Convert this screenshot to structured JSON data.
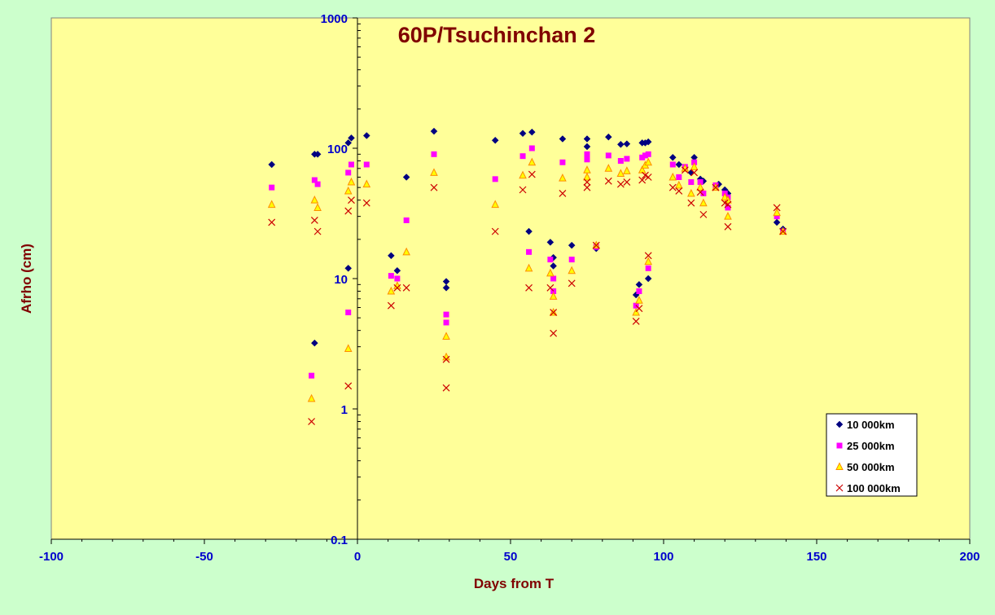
{
  "chart_data": {
    "type": "scatter",
    "title": "60P/Tsuchinchan 2",
    "xlabel": "Days from T",
    "ylabel": "Afrho (cm)",
    "xlim": [
      -100,
      200
    ],
    "ylim": [
      0.1,
      1000
    ],
    "yscale": "log",
    "x_ticks": [
      "-100",
      "-50",
      "0",
      "50",
      "100",
      "150",
      "200"
    ],
    "y_ticks": [
      "0.1",
      "1",
      "10",
      "100",
      "1000"
    ],
    "grid": false,
    "legend_position": "bottom-right",
    "colors": {
      "background": "#ccffcc",
      "plot_area": "#ffff99",
      "title": "#800000",
      "axis_title": "#800000",
      "tick_labels": "#0000cc"
    },
    "series": [
      {
        "name": "10 000km",
        "marker": "diamond",
        "color": "#000080",
        "points": [
          [
            -28,
            75
          ],
          [
            -14,
            3.2
          ],
          [
            -14,
            90
          ],
          [
            -13,
            90
          ],
          [
            -3,
            12
          ],
          [
            -3,
            110
          ],
          [
            -2,
            120
          ],
          [
            3,
            125
          ],
          [
            11,
            15
          ],
          [
            13,
            11.5
          ],
          [
            16,
            60
          ],
          [
            25,
            135
          ],
          [
            29,
            9.5
          ],
          [
            29,
            8.5
          ],
          [
            45,
            115
          ],
          [
            54,
            130
          ],
          [
            56,
            23
          ],
          [
            57,
            133
          ],
          [
            63,
            19
          ],
          [
            64,
            14.5
          ],
          [
            64,
            12.5
          ],
          [
            67,
            118
          ],
          [
            70,
            18
          ],
          [
            75,
            118
          ],
          [
            75,
            103
          ],
          [
            78,
            17
          ],
          [
            82,
            122
          ],
          [
            86,
            107
          ],
          [
            88,
            108
          ],
          [
            91,
            7.5
          ],
          [
            92,
            9
          ],
          [
            93,
            110
          ],
          [
            94,
            110
          ],
          [
            95,
            112
          ],
          [
            95,
            10
          ],
          [
            103,
            85
          ],
          [
            105,
            75
          ],
          [
            109,
            65
          ],
          [
            110,
            85
          ],
          [
            112,
            58
          ],
          [
            113,
            56
          ],
          [
            118,
            53
          ],
          [
            120,
            48
          ],
          [
            121,
            45
          ],
          [
            137,
            27
          ],
          [
            139,
            24
          ]
        ]
      },
      {
        "name": "25 000km",
        "marker": "square",
        "color": "#ff00ff",
        "points": [
          [
            -28,
            50
          ],
          [
            -15,
            1.8
          ],
          [
            -14,
            57
          ],
          [
            -13,
            53
          ],
          [
            -3,
            5.5
          ],
          [
            -3,
            65
          ],
          [
            -2,
            75
          ],
          [
            3,
            75
          ],
          [
            11,
            10.5
          ],
          [
            13,
            10
          ],
          [
            16,
            28
          ],
          [
            25,
            90
          ],
          [
            29,
            5.3
          ],
          [
            29,
            4.6
          ],
          [
            45,
            58
          ],
          [
            54,
            87
          ],
          [
            56,
            16
          ],
          [
            57,
            100
          ],
          [
            63,
            14
          ],
          [
            64,
            10
          ],
          [
            64,
            8
          ],
          [
            67,
            78
          ],
          [
            70,
            14
          ],
          [
            75,
            90
          ],
          [
            75,
            82
          ],
          [
            78,
            17.5
          ],
          [
            82,
            88
          ],
          [
            86,
            80
          ],
          [
            88,
            83
          ],
          [
            91,
            6.2
          ],
          [
            92,
            8
          ],
          [
            93,
            85
          ],
          [
            94,
            88
          ],
          [
            95,
            90
          ],
          [
            95,
            12
          ],
          [
            103,
            75
          ],
          [
            105,
            60
          ],
          [
            107,
            72
          ],
          [
            109,
            55
          ],
          [
            110,
            78
          ],
          [
            112,
            55
          ],
          [
            113,
            45
          ],
          [
            117,
            52
          ],
          [
            120,
            45
          ],
          [
            121,
            42
          ],
          [
            121,
            35
          ],
          [
            137,
            30
          ],
          [
            139,
            23
          ]
        ]
      },
      {
        "name": "50 000km",
        "marker": "triangle",
        "color": "#ff8c00",
        "points": [
          [
            -28,
            37
          ],
          [
            -15,
            1.2
          ],
          [
            -14,
            40
          ],
          [
            -13,
            35
          ],
          [
            -3,
            2.9
          ],
          [
            -3,
            47
          ],
          [
            -2,
            55
          ],
          [
            3,
            53
          ],
          [
            11,
            8
          ],
          [
            13,
            8.8
          ],
          [
            16,
            16
          ],
          [
            25,
            65
          ],
          [
            29,
            3.6
          ],
          [
            29,
            2.5
          ],
          [
            45,
            37
          ],
          [
            54,
            62
          ],
          [
            56,
            12
          ],
          [
            57,
            78
          ],
          [
            63,
            11
          ],
          [
            64,
            7.3
          ],
          [
            64,
            5.5
          ],
          [
            67,
            59
          ],
          [
            70,
            11.5
          ],
          [
            75,
            68
          ],
          [
            75,
            60
          ],
          [
            78,
            18
          ],
          [
            82,
            70
          ],
          [
            86,
            64
          ],
          [
            88,
            67
          ],
          [
            91,
            5.5
          ],
          [
            92,
            6.8
          ],
          [
            93,
            68
          ],
          [
            94,
            74
          ],
          [
            95,
            78
          ],
          [
            95,
            13.5
          ],
          [
            103,
            60
          ],
          [
            105,
            52
          ],
          [
            107,
            70
          ],
          [
            109,
            45
          ],
          [
            110,
            72
          ],
          [
            112,
            50
          ],
          [
            113,
            38
          ],
          [
            117,
            50
          ],
          [
            120,
            42
          ],
          [
            121,
            40
          ],
          [
            121,
            30
          ],
          [
            137,
            32
          ],
          [
            139,
            23
          ]
        ]
      },
      {
        "name": "100 000km",
        "marker": "x",
        "color": "#cc0000",
        "points": [
          [
            -28,
            27
          ],
          [
            -15,
            0.8
          ],
          [
            -14,
            28
          ],
          [
            -13,
            23
          ],
          [
            -3,
            1.5
          ],
          [
            -3,
            33
          ],
          [
            -2,
            40
          ],
          [
            3,
            38
          ],
          [
            11,
            6.2
          ],
          [
            13,
            8.5
          ],
          [
            16,
            8.5
          ],
          [
            25,
            50
          ],
          [
            29,
            2.4
          ],
          [
            29,
            1.45
          ],
          [
            45,
            23
          ],
          [
            54,
            48
          ],
          [
            56,
            8.5
          ],
          [
            57,
            63
          ],
          [
            63,
            8.5
          ],
          [
            64,
            5.5
          ],
          [
            64,
            3.8
          ],
          [
            67,
            45
          ],
          [
            70,
            9.2
          ],
          [
            75,
            50
          ],
          [
            75,
            55
          ],
          [
            78,
            18
          ],
          [
            82,
            56
          ],
          [
            86,
            53
          ],
          [
            88,
            55
          ],
          [
            91,
            4.7
          ],
          [
            92,
            5.9
          ],
          [
            93,
            57
          ],
          [
            94,
            62
          ],
          [
            95,
            60
          ],
          [
            95,
            15
          ],
          [
            103,
            50
          ],
          [
            105,
            47
          ],
          [
            107,
            68
          ],
          [
            109,
            38
          ],
          [
            110,
            65
          ],
          [
            112,
            46
          ],
          [
            113,
            31
          ],
          [
            117,
            50
          ],
          [
            120,
            38
          ],
          [
            121,
            37
          ],
          [
            121,
            25
          ],
          [
            137,
            35
          ],
          [
            139,
            23
          ]
        ]
      }
    ]
  }
}
